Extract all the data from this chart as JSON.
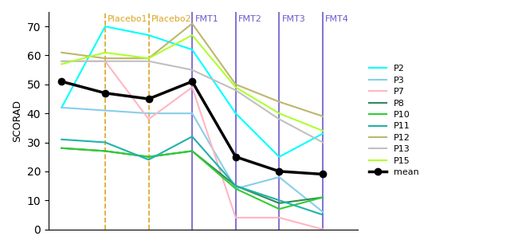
{
  "x_positions": [
    0,
    1,
    2,
    3,
    4,
    5,
    6
  ],
  "patients": {
    "P2": {
      "color": "#00FFFF",
      "values": [
        42,
        70,
        67,
        62,
        40,
        25,
        33
      ]
    },
    "P3": {
      "color": "#87CEEB",
      "values": [
        42,
        41,
        40,
        40,
        14,
        18,
        6
      ]
    },
    "P7": {
      "color": "#FFB6C1",
      "values": [
        58,
        58,
        38,
        49,
        4,
        4,
        0
      ]
    },
    "P8": {
      "color": "#2E8B57",
      "values": [
        28,
        27,
        25,
        27,
        15,
        9,
        11
      ]
    },
    "P10": {
      "color": "#32CD32",
      "values": [
        28,
        27,
        25,
        27,
        14,
        7,
        11
      ]
    },
    "P11": {
      "color": "#20B2AA",
      "values": [
        31,
        30,
        24,
        32,
        15,
        10,
        5
      ]
    },
    "P12": {
      "color": "#BDB76B",
      "values": [
        61,
        59,
        59,
        71,
        50,
        44,
        39
      ]
    },
    "P13": {
      "color": "#C0C0C0",
      "values": [
        58,
        58,
        58,
        55,
        48,
        38,
        30
      ]
    },
    "P15": {
      "color": "#ADFF2F",
      "values": [
        57,
        61,
        59,
        67,
        49,
        40,
        34
      ]
    },
    "mean": {
      "color": "#000000",
      "values": [
        51,
        47,
        45,
        51,
        25,
        20,
        19
      ]
    }
  },
  "line_info": [
    {
      "label": "Placebo1",
      "x": 1,
      "color": "#DAA520",
      "linestyle": "--"
    },
    {
      "label": "Placebo2",
      "x": 2,
      "color": "#DAA520",
      "linestyle": "--"
    },
    {
      "label": "FMT1",
      "x": 3,
      "color": "#6A5ACD",
      "linestyle": "-"
    },
    {
      "label": "FMT2",
      "x": 4,
      "color": "#6A5ACD",
      "linestyle": "-"
    },
    {
      "label": "FMT3",
      "x": 5,
      "color": "#6A5ACD",
      "linestyle": "-"
    },
    {
      "label": "FMT4",
      "x": 6,
      "color": "#6A5ACD",
      "linestyle": "-"
    }
  ],
  "ylabel": "SCORAD",
  "ylim": [
    0,
    75
  ],
  "yticks": [
    0,
    10,
    20,
    30,
    40,
    50,
    60,
    70
  ],
  "bg_color": "#FFFFFF",
  "legend_order": [
    "P2",
    "P3",
    "P7",
    "P8",
    "P10",
    "P11",
    "P12",
    "P13",
    "P15",
    "mean"
  ]
}
